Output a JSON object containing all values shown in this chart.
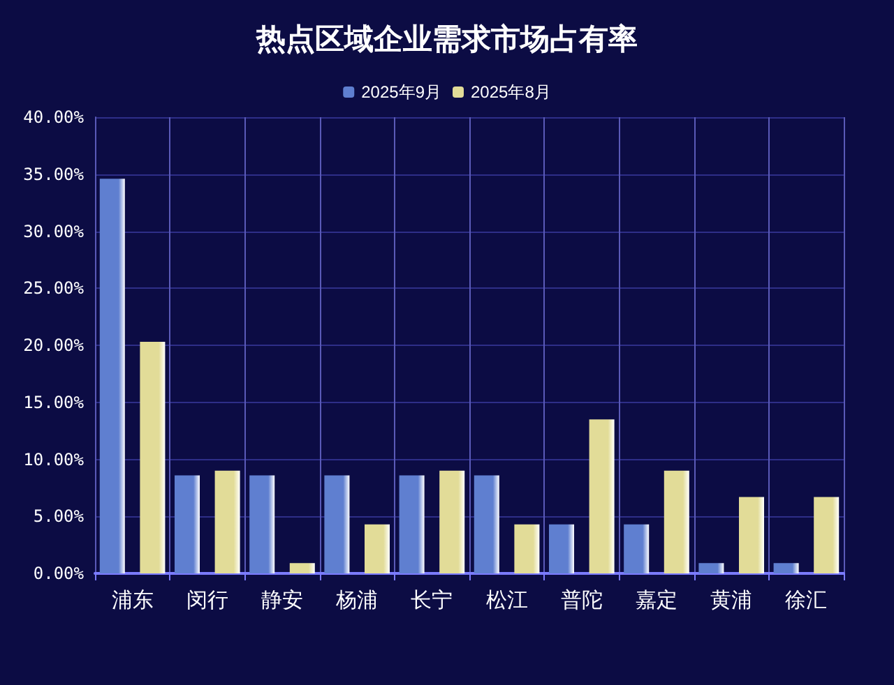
{
  "chart_data": {
    "type": "bar",
    "title": "热点区域企业需求市场占有率",
    "categories": [
      "浦东",
      "闵行",
      "静安",
      "杨浦",
      "长宁",
      "松江",
      "普陀",
      "嘉定",
      "黄浦",
      "徐汇"
    ],
    "series": [
      {
        "name": "2025年9月",
        "color": "#5f7fd0",
        "values": [
          34.6,
          8.6,
          8.6,
          8.6,
          8.6,
          8.6,
          4.3,
          4.3,
          0.9,
          0.9
        ]
      },
      {
        "name": "2025年8月",
        "color": "#e2dc98",
        "values": [
          20.3,
          9.0,
          0.9,
          4.3,
          9.0,
          4.3,
          13.5,
          9.0,
          6.7,
          6.7
        ]
      }
    ],
    "ylim": [
      0,
      40
    ],
    "yticks": [
      {
        "value": 0,
        "label": "0.00%"
      },
      {
        "value": 5,
        "label": "5.00%"
      },
      {
        "value": 10,
        "label": "10.00%"
      },
      {
        "value": 15,
        "label": "15.00%"
      },
      {
        "value": 20,
        "label": "20.00%"
      },
      {
        "value": 25,
        "label": "25.00%"
      },
      {
        "value": 30,
        "label": "30.00%"
      },
      {
        "value": 35,
        "label": "35.00%"
      },
      {
        "value": 40,
        "label": "40.00%"
      }
    ],
    "grid": true,
    "legend": "top"
  }
}
